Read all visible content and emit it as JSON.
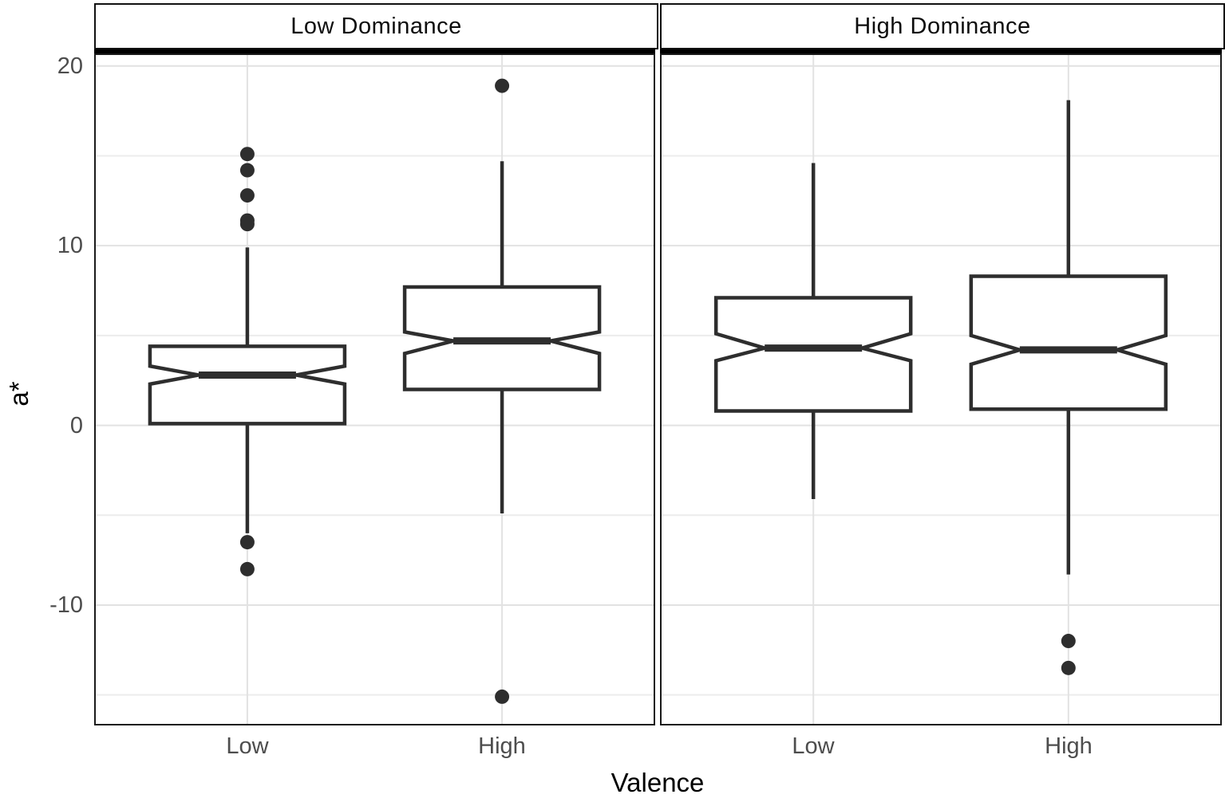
{
  "chart_data": {
    "type": "boxplot",
    "notched": true,
    "xlabel": "Valence",
    "ylabel": "a*",
    "categories": [
      "Low",
      "High"
    ],
    "ylim": [
      -16.7,
      20.7
    ],
    "yticks": [
      20,
      10,
      0,
      -10
    ],
    "ytick_labels": [
      "20",
      "10",
      "0",
      "-10"
    ],
    "yticks_minor": [
      15,
      5,
      -5,
      -15
    ],
    "grid": true,
    "facets": [
      {
        "label": "Low Dominance",
        "boxes": [
          {
            "category": "Low",
            "whisker_low": -6.0,
            "q1": 0.1,
            "notch_low": 2.3,
            "median": 2.8,
            "notch_high": 3.3,
            "q3": 4.4,
            "whisker_high": 9.9,
            "outliers": [
              15.1,
              14.2,
              12.8,
              11.4,
              11.2,
              -6.5,
              -8.0
            ]
          },
          {
            "category": "High",
            "whisker_low": -4.9,
            "q1": 2.0,
            "notch_low": 4.0,
            "median": 4.7,
            "notch_high": 5.2,
            "q3": 7.7,
            "whisker_high": 14.7,
            "outliers": [
              18.9,
              -15.1
            ]
          }
        ]
      },
      {
        "label": "High Dominance",
        "boxes": [
          {
            "category": "Low",
            "whisker_low": -4.1,
            "q1": 0.8,
            "notch_low": 3.6,
            "median": 4.3,
            "notch_high": 5.1,
            "q3": 7.1,
            "whisker_high": 14.6,
            "outliers": []
          },
          {
            "category": "High",
            "whisker_low": -8.3,
            "q1": 0.9,
            "notch_low": 3.4,
            "median": 4.2,
            "notch_high": 5.0,
            "q3": 8.3,
            "whisker_high": 18.1,
            "outliers": [
              -12.0,
              -13.5
            ]
          }
        ]
      }
    ]
  },
  "colors": {
    "box_stroke": "#2e2e2e",
    "box_fill": "#ffffff",
    "outlier_fill": "#2e2e2e",
    "grid_major": "#e2e2e2",
    "grid_minor": "#ececec",
    "panel_border": "#1a1a1a",
    "strip_border": "#111111",
    "tick_text": "#4d4d4d",
    "title_text": "#000000",
    "background": "#ffffff"
  }
}
